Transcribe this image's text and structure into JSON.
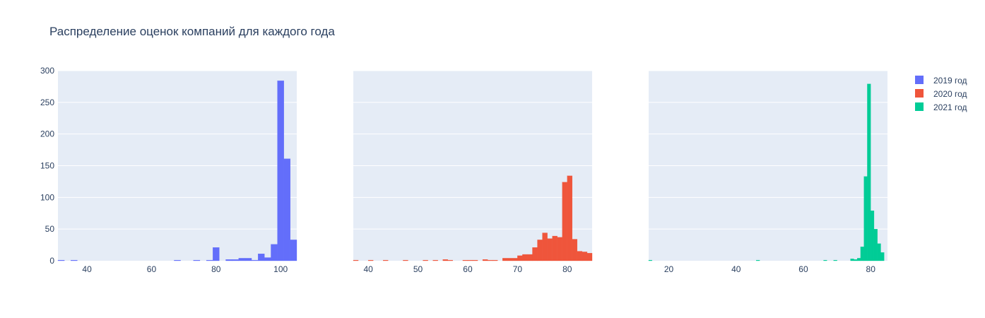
{
  "chart_data": {
    "type": "bar",
    "title": "Распределение оценок компаний для каждого года",
    "legend_position": "top-right",
    "grid": true,
    "background": "#e5ecf6",
    "y_ticks": [
      "0",
      "50",
      "100",
      "150",
      "200",
      "250",
      "300"
    ],
    "ylim": [
      0,
      300
    ],
    "series": [
      {
        "name": "2019 год",
        "color": "#636efa",
        "xlim": [
          31,
          105
        ],
        "x_ticks": [
          40,
          60,
          80,
          100
        ],
        "x_tick_labels": [
          "40",
          "60",
          "80",
          "100"
        ],
        "bin_width": 2,
        "bins": [
          {
            "x": 31,
            "y": 1
          },
          {
            "x": 35,
            "y": 1
          },
          {
            "x": 67,
            "y": 1
          },
          {
            "x": 73,
            "y": 1
          },
          {
            "x": 77,
            "y": 1
          },
          {
            "x": 79,
            "y": 21
          },
          {
            "x": 83,
            "y": 2
          },
          {
            "x": 85,
            "y": 2
          },
          {
            "x": 87,
            "y": 4
          },
          {
            "x": 89,
            "y": 4
          },
          {
            "x": 91,
            "y": 1
          },
          {
            "x": 93,
            "y": 11
          },
          {
            "x": 95,
            "y": 5
          },
          {
            "x": 97,
            "y": 26
          },
          {
            "x": 99,
            "y": 284
          },
          {
            "x": 101,
            "y": 161
          },
          {
            "x": 103,
            "y": 33
          }
        ]
      },
      {
        "name": "2020 год",
        "color": "#ef553b",
        "xlim": [
          37,
          85
        ],
        "x_ticks": [
          40,
          50,
          60,
          70,
          80
        ],
        "x_tick_labels": [
          "40",
          "50",
          "60",
          "70",
          "80"
        ],
        "bin_width": 1,
        "bins": [
          {
            "x": 37,
            "y": 1
          },
          {
            "x": 40,
            "y": 1
          },
          {
            "x": 43,
            "y": 1
          },
          {
            "x": 47,
            "y": 1
          },
          {
            "x": 51,
            "y": 1
          },
          {
            "x": 53,
            "y": 1
          },
          {
            "x": 55,
            "y": 2
          },
          {
            "x": 56,
            "y": 1
          },
          {
            "x": 59,
            "y": 1
          },
          {
            "x": 60,
            "y": 1
          },
          {
            "x": 61,
            "y": 1
          },
          {
            "x": 63,
            "y": 2
          },
          {
            "x": 64,
            "y": 1
          },
          {
            "x": 65,
            "y": 1
          },
          {
            "x": 67,
            "y": 4
          },
          {
            "x": 68,
            "y": 4
          },
          {
            "x": 69,
            "y": 4
          },
          {
            "x": 70,
            "y": 8
          },
          {
            "x": 71,
            "y": 10
          },
          {
            "x": 72,
            "y": 10
          },
          {
            "x": 73,
            "y": 21
          },
          {
            "x": 74,
            "y": 33
          },
          {
            "x": 75,
            "y": 44
          },
          {
            "x": 76,
            "y": 35
          },
          {
            "x": 77,
            "y": 39
          },
          {
            "x": 78,
            "y": 37
          },
          {
            "x": 79,
            "y": 124
          },
          {
            "x": 80,
            "y": 134
          },
          {
            "x": 81,
            "y": 34
          },
          {
            "x": 82,
            "y": 15
          },
          {
            "x": 83,
            "y": 14
          },
          {
            "x": 84,
            "y": 12
          }
        ]
      },
      {
        "name": "2021 год",
        "color": "#00cc96",
        "xlim": [
          14,
          85
        ],
        "x_ticks": [
          20,
          40,
          60,
          80
        ],
        "x_tick_labels": [
          "20",
          "40",
          "60",
          "80"
        ],
        "bin_width": 1,
        "bins": [
          {
            "x": 14,
            "y": 1
          },
          {
            "x": 46,
            "y": 1
          },
          {
            "x": 66,
            "y": 1
          },
          {
            "x": 69,
            "y": 1
          },
          {
            "x": 74,
            "y": 3
          },
          {
            "x": 75,
            "y": 2
          },
          {
            "x": 76,
            "y": 4
          },
          {
            "x": 77,
            "y": 22
          },
          {
            "x": 78,
            "y": 133
          },
          {
            "x": 79,
            "y": 279
          },
          {
            "x": 80,
            "y": 79
          },
          {
            "x": 81,
            "y": 50
          },
          {
            "x": 82,
            "y": 27
          },
          {
            "x": 83,
            "y": 13
          }
        ]
      }
    ]
  }
}
